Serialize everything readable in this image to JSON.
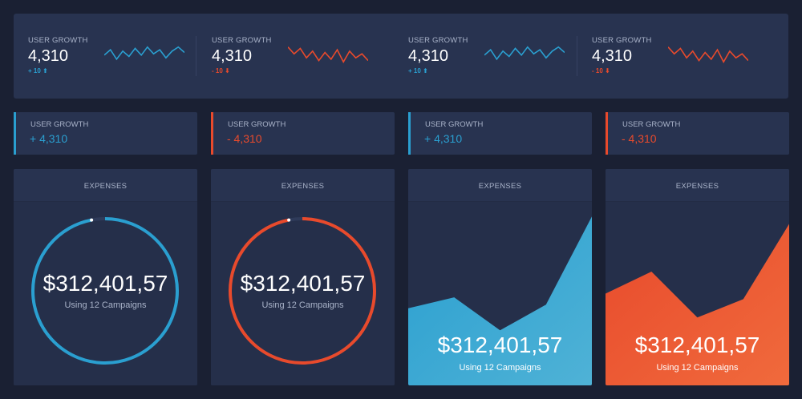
{
  "top_stats": [
    {
      "label": "USER GROWTH",
      "value": "4,310",
      "delta": "+ 10",
      "trend": "up",
      "color": "#2a9fd0",
      "spark": [
        6,
        10,
        3,
        9,
        5,
        11,
        6,
        12,
        7,
        10,
        4,
        9,
        12,
        8
      ]
    },
    {
      "label": "USER GROWTH",
      "value": "4,310",
      "delta": "- 10",
      "trend": "down",
      "color": "#e84a2c",
      "spark": [
        12,
        7,
        11,
        4,
        9,
        2,
        8,
        3,
        10,
        1,
        9,
        4,
        7,
        2
      ]
    },
    {
      "label": "USER GROWTH",
      "value": "4,310",
      "delta": "+ 10",
      "trend": "up",
      "color": "#2a9fd0",
      "spark": [
        6,
        10,
        3,
        9,
        5,
        11,
        6,
        12,
        7,
        10,
        4,
        9,
        12,
        8
      ]
    },
    {
      "label": "USER GROWTH",
      "value": "4,310",
      "delta": "- 10",
      "trend": "down",
      "color": "#e84a2c",
      "spark": [
        12,
        7,
        11,
        4,
        9,
        2,
        8,
        3,
        10,
        1,
        9,
        4,
        7,
        2
      ]
    }
  ],
  "mini_stats": [
    {
      "label": "USER GROWTH",
      "value": "+ 4,310",
      "color": "#2a9fd0"
    },
    {
      "label": "USER GROWTH",
      "value": "- 4,310",
      "color": "#e84a2c"
    },
    {
      "label": "USER GROWTH",
      "value": "+ 4,310",
      "color": "#2a9fd0"
    },
    {
      "label": "USER GROWTH",
      "value": "- 4,310",
      "color": "#e84a2c"
    }
  ],
  "cards": [
    {
      "title": "EXPENSES",
      "amount": "$312,401,57",
      "subtitle": "Using 12 Campaigns",
      "kind": "ring",
      "color": "#2a9fd0",
      "progress": 0.97
    },
    {
      "title": "EXPENSES",
      "amount": "$312,401,57",
      "subtitle": "Using 12 Campaigns",
      "kind": "ring",
      "color": "#e84a2c",
      "progress": 0.97
    },
    {
      "title": "EXPENSES",
      "amount": "$312,401,57",
      "subtitle": "Using 12 Campaigns",
      "kind": "area",
      "color": "#2a9fd0",
      "color2": "#4fb2d6",
      "levels": [
        0.42,
        0.48,
        0.3,
        0.44,
        0.92
      ]
    },
    {
      "title": "EXPENSES",
      "amount": "$312,401,57",
      "subtitle": "Using 12 Campaigns",
      "kind": "area",
      "color": "#e84a2c",
      "color2": "#f06a3c",
      "levels": [
        0.5,
        0.62,
        0.37,
        0.47,
        0.88
      ]
    }
  ]
}
